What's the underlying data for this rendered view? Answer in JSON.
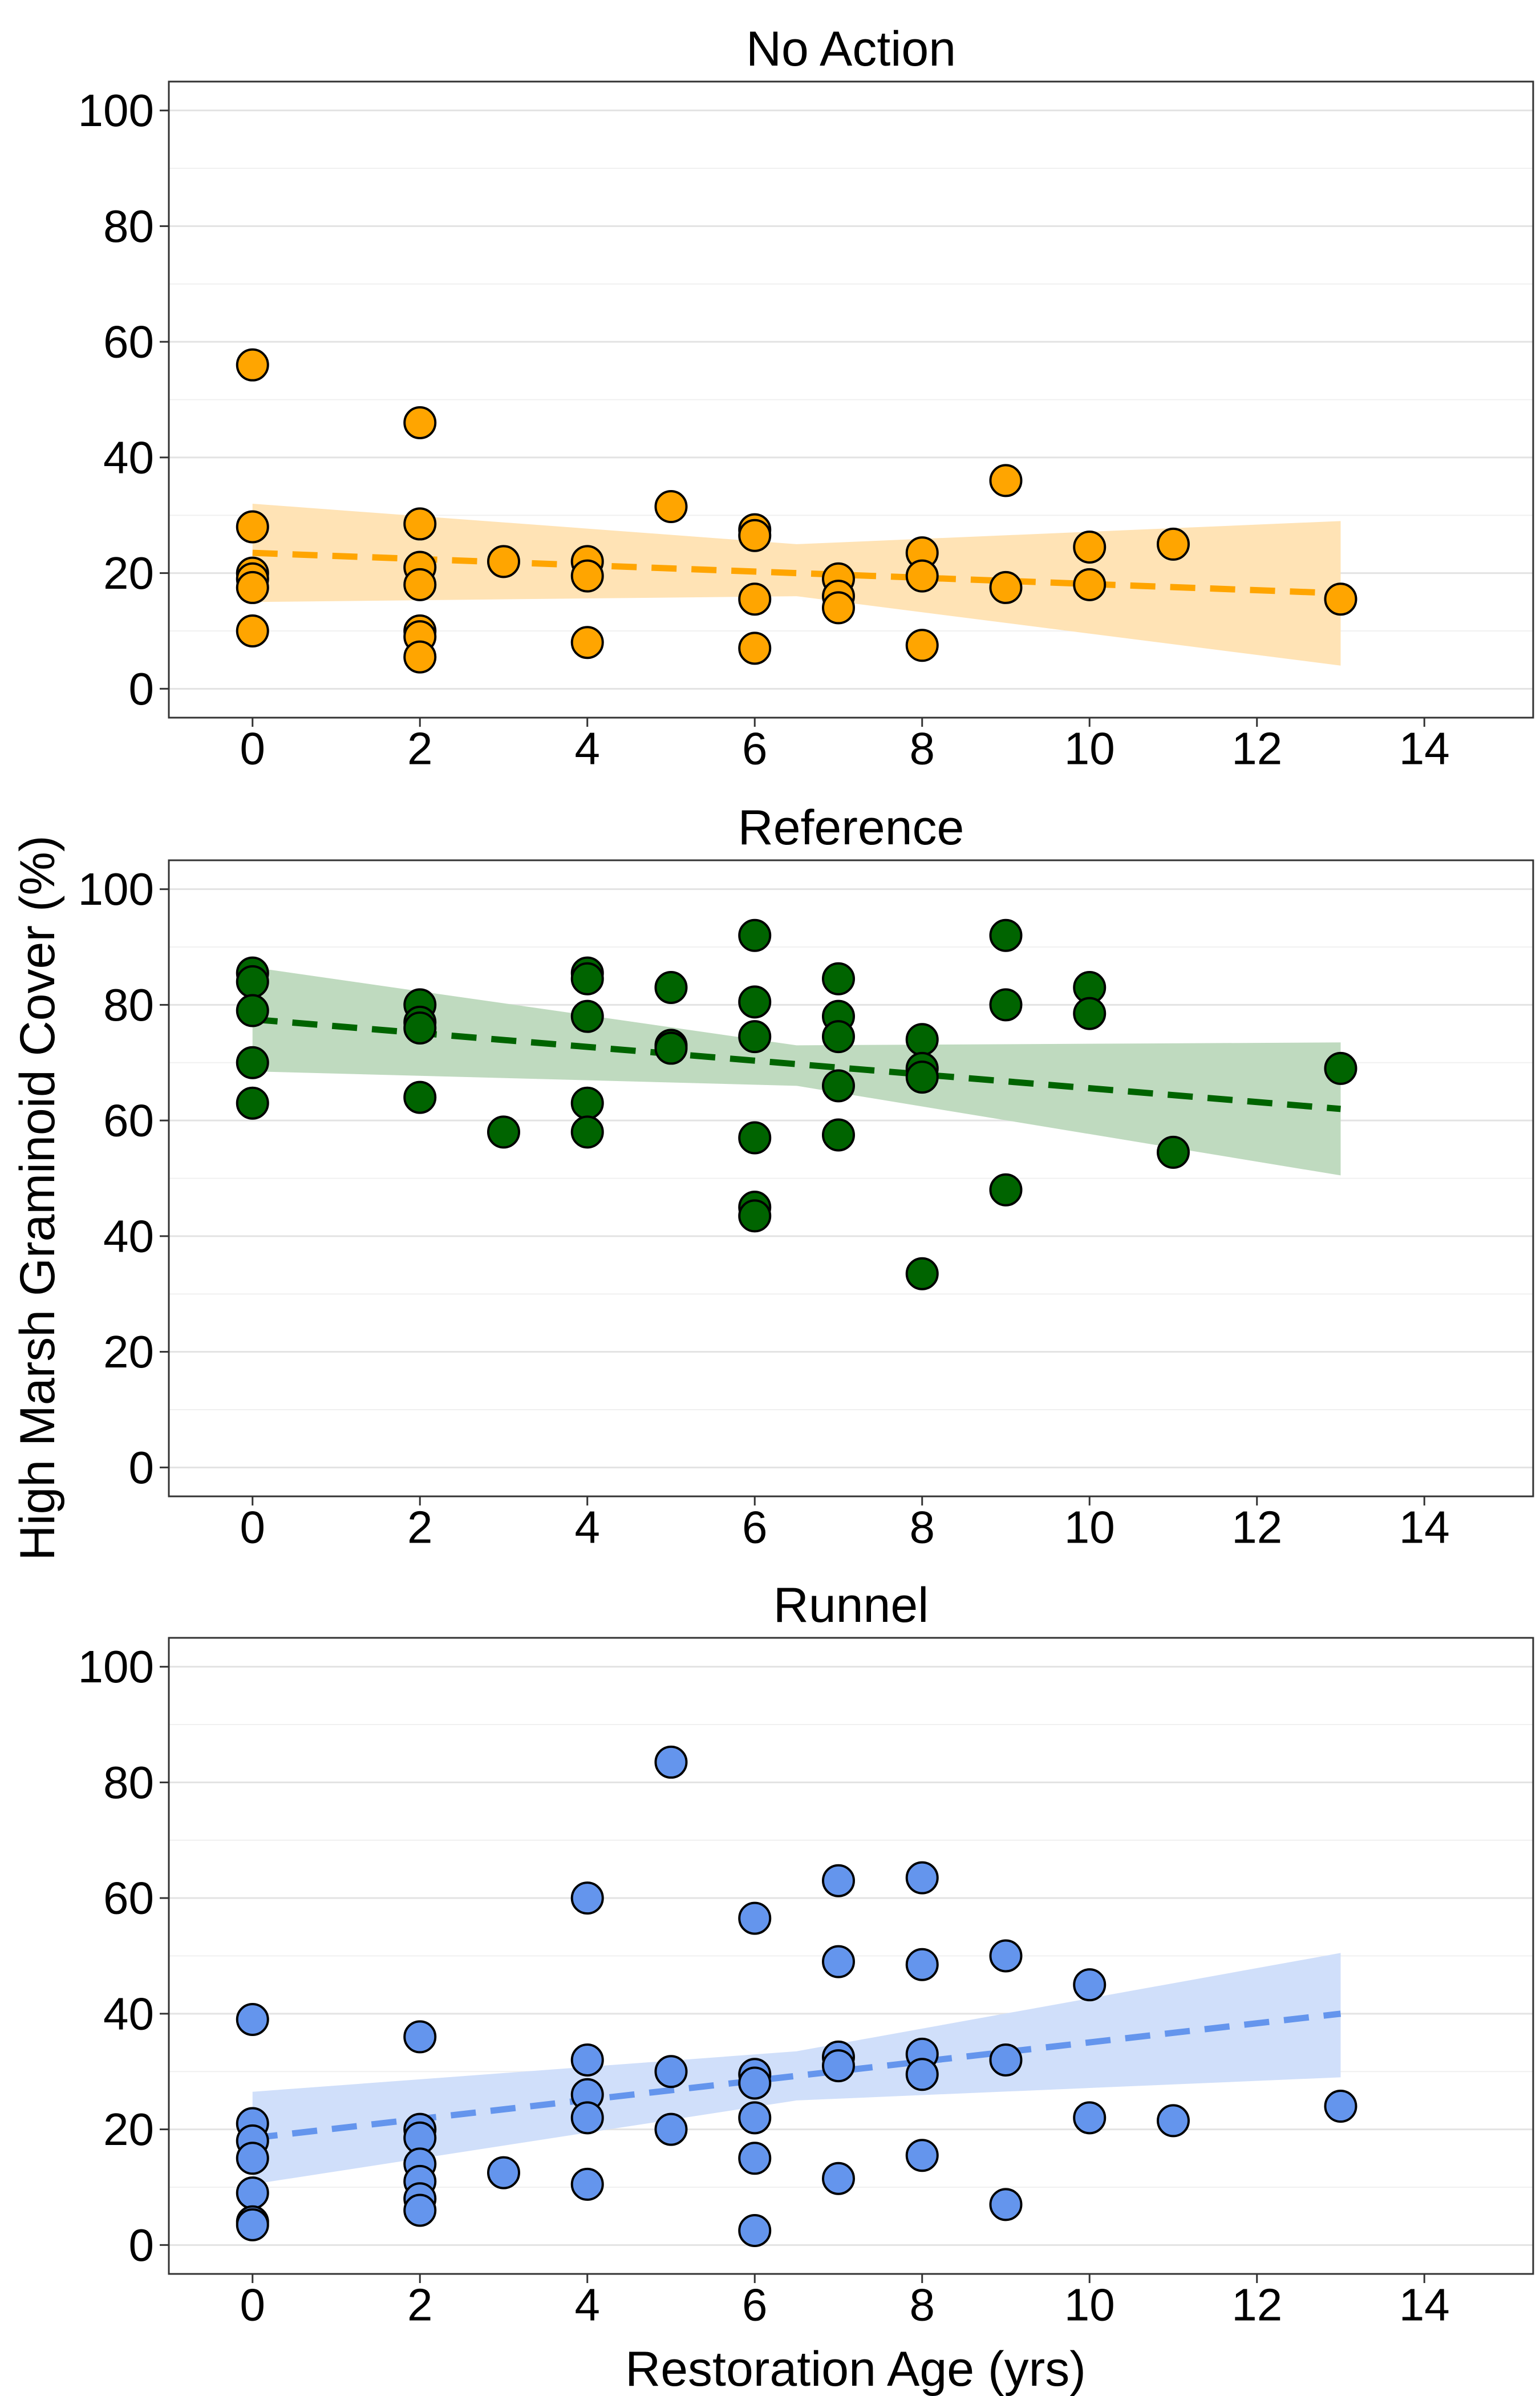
{
  "ylabel": "High Marsh Graminoid Cover (%)",
  "xlabel": "Restoration Age (yrs)",
  "chart_data": [
    {
      "type": "scatter",
      "title": "No Action",
      "color": "#FFA500",
      "band_color": "#FFE3B5",
      "xlim": [
        -1,
        15.3
      ],
      "ylim": [
        -5,
        105
      ],
      "xticks": [
        0,
        2,
        4,
        6,
        8,
        10,
        12,
        14
      ],
      "yticks": [
        0,
        20,
        40,
        60,
        80,
        100
      ],
      "grid": true,
      "points": [
        [
          0,
          56
        ],
        [
          0,
          28
        ],
        [
          0,
          20
        ],
        [
          0,
          19
        ],
        [
          0,
          17.5
        ],
        [
          0,
          10
        ],
        [
          2,
          46
        ],
        [
          2,
          28.5
        ],
        [
          2,
          21
        ],
        [
          2,
          18
        ],
        [
          2,
          10
        ],
        [
          2,
          9
        ],
        [
          2,
          5.5
        ],
        [
          3,
          22
        ],
        [
          4,
          22
        ],
        [
          4,
          19.5
        ],
        [
          4,
          8
        ],
        [
          5,
          31.5
        ],
        [
          6,
          27.5
        ],
        [
          6,
          26.5
        ],
        [
          6,
          15.5
        ],
        [
          6,
          7
        ],
        [
          7,
          19
        ],
        [
          7,
          16
        ],
        [
          7,
          14
        ],
        [
          8,
          23.5
        ],
        [
          8,
          19.5
        ],
        [
          8,
          7.5
        ],
        [
          9,
          36
        ],
        [
          9,
          17.5
        ],
        [
          10,
          24.5
        ],
        [
          10,
          18
        ],
        [
          11,
          25
        ],
        [
          13,
          15.5
        ]
      ],
      "fit": {
        "x": [
          0,
          13
        ],
        "y": [
          23.5,
          16.5
        ]
      },
      "band": {
        "x": [
          0,
          6.5,
          13
        ],
        "lower": [
          15,
          16,
          4
        ],
        "upper": [
          32,
          25,
          29
        ]
      }
    },
    {
      "type": "scatter",
      "title": "Reference",
      "color": "#006400",
      "band_color": "#BFDABF",
      "xlim": [
        -1,
        15.3
      ],
      "ylim": [
        -5,
        105
      ],
      "xticks": [
        0,
        2,
        4,
        6,
        8,
        10,
        12,
        14
      ],
      "yticks": [
        0,
        20,
        40,
        60,
        80,
        100
      ],
      "grid": true,
      "points": [
        [
          0,
          85.5
        ],
        [
          0,
          84
        ],
        [
          0,
          79
        ],
        [
          0,
          70
        ],
        [
          0,
          63
        ],
        [
          2,
          80
        ],
        [
          2,
          77
        ],
        [
          2,
          76
        ],
        [
          2,
          64
        ],
        [
          3,
          58
        ],
        [
          4,
          85.5
        ],
        [
          4,
          84.5
        ],
        [
          4,
          78
        ],
        [
          4,
          63
        ],
        [
          4,
          58
        ],
        [
          5,
          83
        ],
        [
          5,
          73
        ],
        [
          5,
          72.5
        ],
        [
          6,
          92
        ],
        [
          6,
          80.5
        ],
        [
          6,
          74.5
        ],
        [
          6,
          57
        ],
        [
          6,
          45
        ],
        [
          6,
          43.5
        ],
        [
          7,
          84.5
        ],
        [
          7,
          78
        ],
        [
          7,
          74.5
        ],
        [
          7,
          66
        ],
        [
          7,
          57.5
        ],
        [
          8,
          74
        ],
        [
          8,
          69
        ],
        [
          8,
          67.5
        ],
        [
          8,
          33.5
        ],
        [
          9,
          92
        ],
        [
          9,
          80
        ],
        [
          9,
          48
        ],
        [
          10,
          83
        ],
        [
          10,
          78.5
        ],
        [
          11,
          54.5
        ],
        [
          13,
          69
        ]
      ],
      "fit": {
        "x": [
          0,
          13
        ],
        "y": [
          77.5,
          62
        ]
      },
      "band": {
        "x": [
          0,
          6.5,
          13
        ],
        "lower": [
          68.5,
          66,
          50.5
        ],
        "upper": [
          86.5,
          73,
          73.5
        ]
      }
    },
    {
      "type": "scatter",
      "title": "Runnel",
      "color": "#6495ED",
      "band_color": "#D0DFFA",
      "xlim": [
        -1,
        15.3
      ],
      "ylim": [
        -5,
        105
      ],
      "xticks": [
        0,
        2,
        4,
        6,
        8,
        10,
        12,
        14
      ],
      "yticks": [
        0,
        20,
        40,
        60,
        80,
        100
      ],
      "grid": true,
      "points": [
        [
          0,
          39
        ],
        [
          0,
          21
        ],
        [
          0,
          18
        ],
        [
          0,
          15
        ],
        [
          0,
          9
        ],
        [
          0,
          4
        ],
        [
          0,
          3.5
        ],
        [
          2,
          36
        ],
        [
          2,
          20
        ],
        [
          2,
          18.5
        ],
        [
          2,
          14
        ],
        [
          2,
          11
        ],
        [
          2,
          8
        ],
        [
          2,
          6
        ],
        [
          3,
          12.5
        ],
        [
          4,
          60
        ],
        [
          4,
          32
        ],
        [
          4,
          26
        ],
        [
          4,
          22
        ],
        [
          4,
          10.5
        ],
        [
          5,
          83.5
        ],
        [
          5,
          30
        ],
        [
          5,
          20
        ],
        [
          6,
          56.5
        ],
        [
          6,
          29.5
        ],
        [
          6,
          28
        ],
        [
          6,
          22
        ],
        [
          6,
          15
        ],
        [
          6,
          2.5
        ],
        [
          7,
          63
        ],
        [
          7,
          49
        ],
        [
          7,
          32.5
        ],
        [
          7,
          31
        ],
        [
          7,
          11.5
        ],
        [
          8,
          63.5
        ],
        [
          8,
          48.5
        ],
        [
          8,
          33
        ],
        [
          8,
          29.5
        ],
        [
          8,
          15.5
        ],
        [
          9,
          50
        ],
        [
          9,
          32
        ],
        [
          9,
          7
        ],
        [
          10,
          45
        ],
        [
          10,
          22
        ],
        [
          11,
          21.5
        ],
        [
          13,
          24
        ]
      ],
      "fit": {
        "x": [
          0,
          13
        ],
        "y": [
          18.5,
          40
        ]
      },
      "band": {
        "x": [
          0,
          6.5,
          13
        ],
        "lower": [
          10.5,
          25,
          29
        ],
        "upper": [
          26.5,
          33.5,
          50.5
        ]
      }
    }
  ]
}
